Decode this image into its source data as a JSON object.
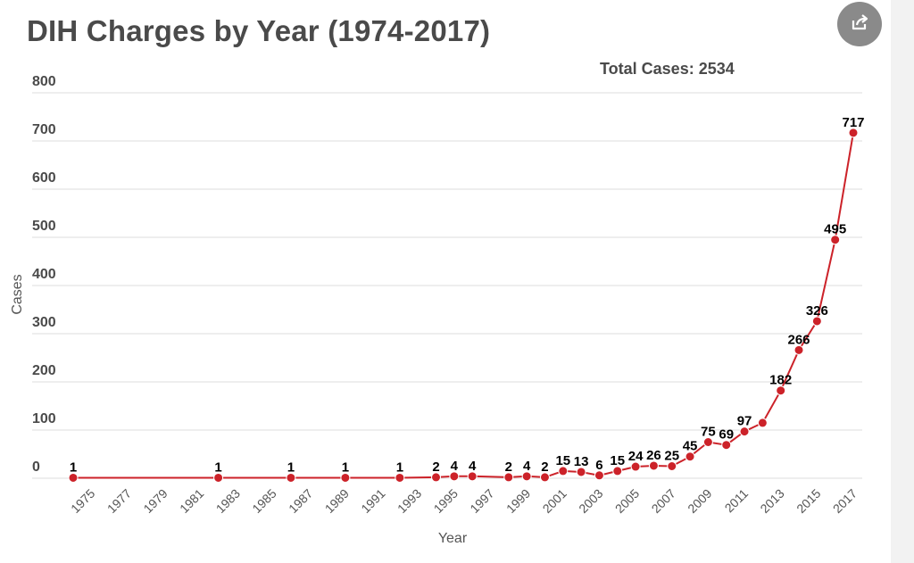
{
  "share_icon": "share-icon",
  "colors": {
    "line": "#cc2229",
    "grid": "#dddddd",
    "text": "#4a4a4a"
  },
  "chart_data": {
    "type": "line",
    "title": "DIH Charges by Year (1974-2017)",
    "annotation": "Total Cases: 2534",
    "xlabel": "Year",
    "ylabel": "Cases",
    "xlim": [
      1974,
      2017
    ],
    "ylim": [
      0,
      800
    ],
    "yticks": [
      0,
      100,
      200,
      300,
      400,
      500,
      600,
      700,
      800
    ],
    "xticks": [
      1975,
      1977,
      1979,
      1981,
      1983,
      1985,
      1987,
      1989,
      1991,
      1993,
      1995,
      1997,
      1999,
      2001,
      2003,
      2005,
      2007,
      2009,
      2011,
      2013,
      2015,
      2017
    ],
    "grid": true,
    "series": [
      {
        "name": "Cases",
        "x": [
          1974,
          1982,
          1986,
          1989,
          1992,
          1994,
          1995,
          1996,
          1998,
          1999,
          2000,
          2001,
          2002,
          2003,
          2004,
          2005,
          2006,
          2007,
          2008,
          2009,
          2010,
          2011,
          2012,
          2013,
          2014,
          2015,
          2016,
          2017
        ],
        "y": [
          1,
          1,
          1,
          1,
          1,
          2,
          4,
          4,
          2,
          4,
          2,
          15,
          13,
          6,
          15,
          24,
          26,
          25,
          45,
          75,
          69,
          97,
          115,
          182,
          266,
          326,
          495,
          717
        ],
        "labels": [
          "1",
          "1",
          "1",
          "1",
          "1",
          "2",
          "4",
          "4",
          "2",
          "4",
          "2",
          "15",
          "13",
          "6",
          "15",
          "24",
          "26",
          "25",
          "45",
          "75",
          "69",
          "97",
          "",
          "182",
          "266",
          "326",
          "495",
          "717"
        ]
      }
    ]
  }
}
